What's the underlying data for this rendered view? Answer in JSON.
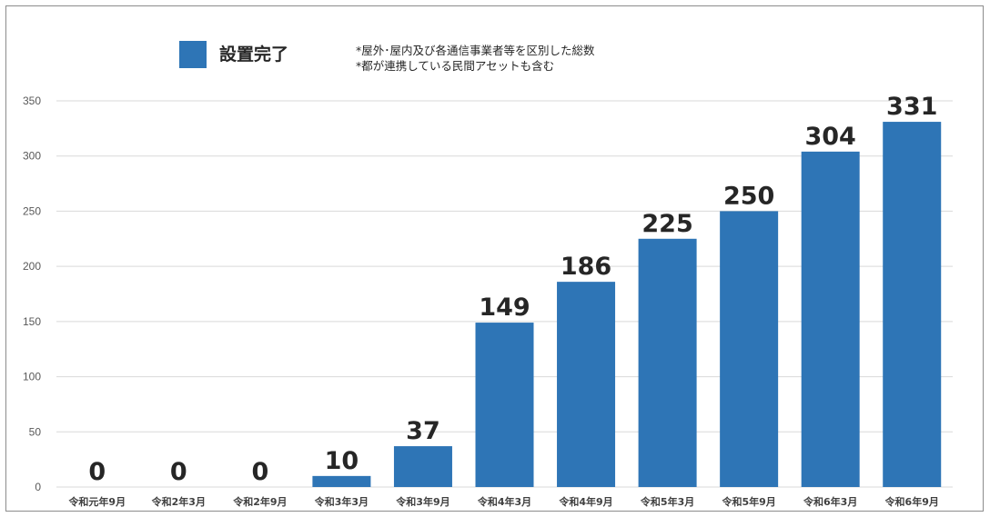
{
  "legend": {
    "label": "設置完了",
    "color": "#2e75b6"
  },
  "notes": [
    "*屋外･屋内及び各通信事業者等を区別した総数",
    "*都が連携している民間アセットも含む"
  ],
  "chart_data": {
    "type": "bar",
    "categories": [
      "令和元年9月",
      "令和2年3月",
      "令和2年9月",
      "令和3年3月",
      "令和3年9月",
      "令和4年3月",
      "令和4年9月",
      "令和5年3月",
      "令和5年9月",
      "令和6年3月",
      "令和6年9月"
    ],
    "series": [
      {
        "name": "設置完了",
        "values": [
          0,
          0,
          0,
          10,
          37,
          149,
          186,
          225,
          250,
          304,
          331
        ]
      }
    ],
    "yticks": [
      0,
      50,
      100,
      150,
      200,
      250,
      300,
      350
    ],
    "ylim": [
      0,
      350
    ],
    "grid": true,
    "data_labels": true,
    "legend_position": "top-left",
    "bar_color": "#2e75b6",
    "gridline_color": "#d9d9d9",
    "text_color": "#262626"
  }
}
